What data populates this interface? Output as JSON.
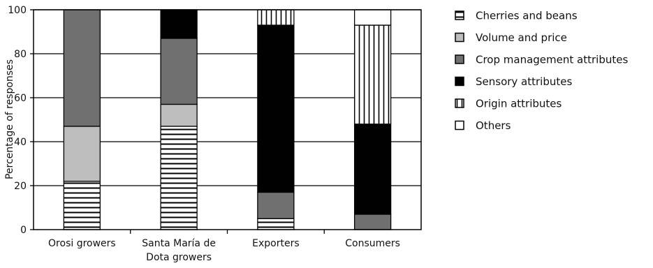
{
  "chart_data": {
    "type": "bar",
    "stacked": true,
    "title": "",
    "xlabel": "",
    "ylabel": "Percentage of responses",
    "ylim": [
      0,
      100
    ],
    "yticks": [
      0,
      20,
      40,
      60,
      80,
      100
    ],
    "grid": true,
    "legend_position": "right",
    "categories": [
      [
        "Orosi growers"
      ],
      [
        "Santa María de",
        "Dota growers"
      ],
      [
        "Exporters"
      ],
      [
        "Consumers"
      ]
    ],
    "series": [
      {
        "name": "Cherries and beans",
        "pattern": "horizontal-lines",
        "color": "#ffffff",
        "values": [
          22,
          47,
          5,
          0
        ]
      },
      {
        "name": "Volume and price",
        "pattern": "solid",
        "color": "#bdbdbd",
        "values": [
          25,
          10,
          0,
          0
        ]
      },
      {
        "name": "Crop management attributes",
        "pattern": "solid",
        "color": "#707070",
        "values": [
          53,
          30,
          12,
          7
        ]
      },
      {
        "name": "Sensory attributes",
        "pattern": "solid",
        "color": "#000000",
        "values": [
          0,
          13,
          76,
          41
        ]
      },
      {
        "name": "Origin attributes",
        "pattern": "vertical-lines",
        "color": "#ffffff",
        "values": [
          0,
          0,
          7,
          45
        ]
      },
      {
        "name": "Others",
        "pattern": "solid",
        "color": "#ffffff",
        "values": [
          0,
          0,
          0,
          7
        ]
      }
    ]
  }
}
